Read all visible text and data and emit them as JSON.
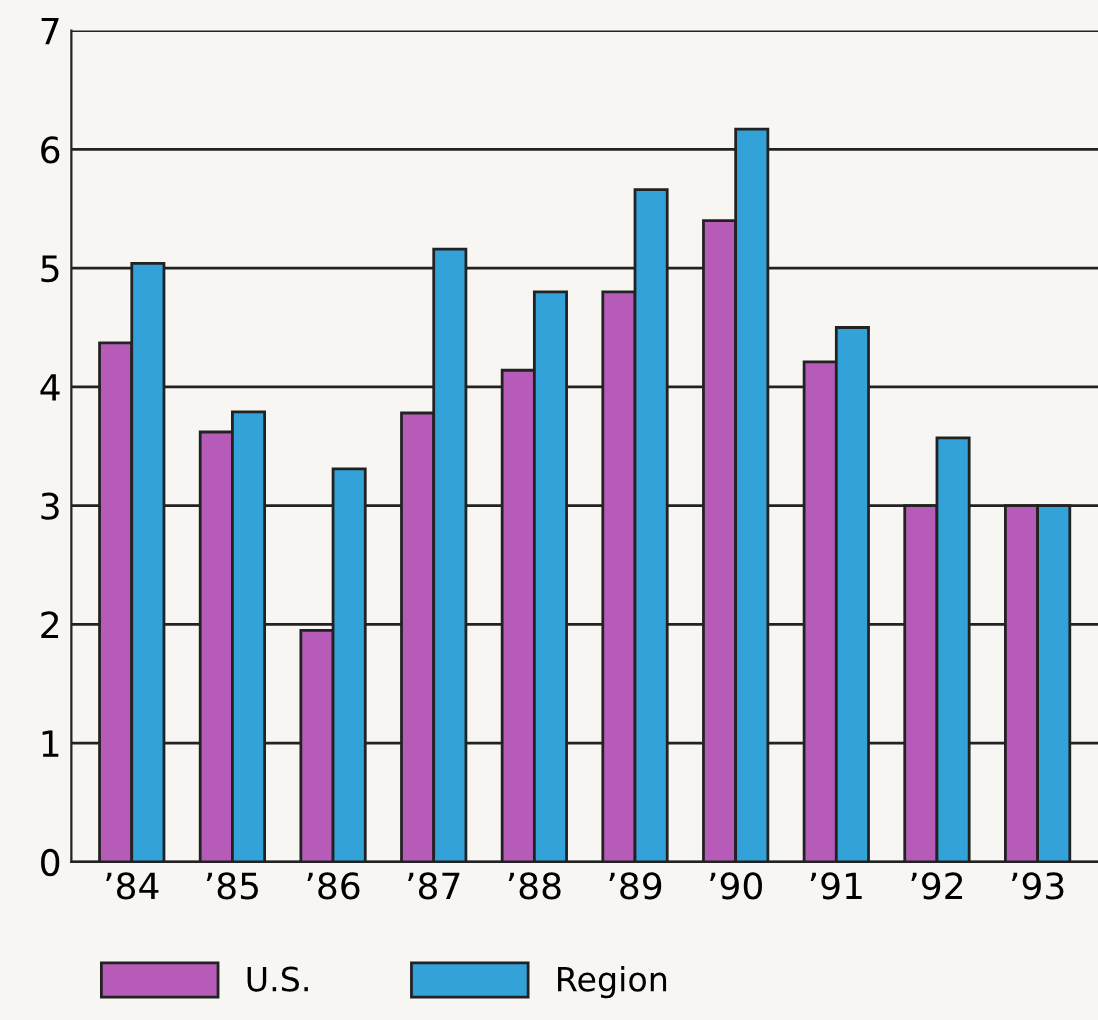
{
  "chart_data": {
    "type": "bar",
    "categories": [
      "’84",
      "’85",
      "’86",
      "’87",
      "’88",
      "’89",
      "’90",
      "’91",
      "’92",
      "’93"
    ],
    "series": [
      {
        "name": "U.S.",
        "color": "#b65cb8",
        "values": [
          4.37,
          3.62,
          1.95,
          3.78,
          4.14,
          4.8,
          5.4,
          4.21,
          3.0,
          3.0
        ]
      },
      {
        "name": "Region",
        "color": "#33a2d9",
        "values": [
          5.04,
          3.79,
          3.31,
          5.16,
          4.8,
          5.66,
          6.17,
          4.5,
          3.57,
          3.0
        ]
      }
    ],
    "ylim": [
      0,
      7
    ],
    "yticks": [
      0,
      1,
      2,
      3,
      4,
      5,
      6,
      7
    ],
    "grid": "y",
    "legend": "bottom"
  }
}
